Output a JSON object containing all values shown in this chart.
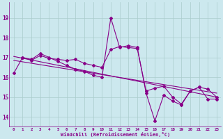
{
  "xlabel": "Windchill (Refroidissement éolien,°C)",
  "bg_color": "#cce8ee",
  "line_color": "#880088",
  "grid_color": "#aacccc",
  "xlim": [
    -0.5,
    23.5
  ],
  "ylim": [
    13.5,
    19.8
  ],
  "yticks": [
    14,
    15,
    16,
    17,
    18,
    19
  ],
  "xticks": [
    0,
    1,
    2,
    3,
    4,
    5,
    6,
    7,
    8,
    9,
    10,
    11,
    12,
    13,
    14,
    15,
    16,
    17,
    18,
    19,
    20,
    21,
    22,
    23
  ],
  "series1_x": [
    0,
    1,
    2,
    3,
    4,
    5,
    6,
    7,
    8,
    9,
    10,
    11,
    12,
    13,
    14,
    15,
    16,
    17,
    18,
    19,
    20,
    21,
    22,
    23
  ],
  "series1_y": [
    16.2,
    17.0,
    16.9,
    17.2,
    17.0,
    16.8,
    16.6,
    16.4,
    16.3,
    16.1,
    16.0,
    19.0,
    17.5,
    17.6,
    17.5,
    15.2,
    13.8,
    15.1,
    14.8,
    14.6,
    15.3,
    15.5,
    14.9,
    14.9
  ],
  "series2_x": [
    1,
    2,
    3,
    4,
    5,
    6,
    7,
    8,
    9,
    10,
    11,
    12,
    13,
    14,
    15,
    16,
    17,
    18,
    19,
    20,
    21,
    22,
    23
  ],
  "series2_y": [
    17.0,
    16.85,
    17.1,
    16.95,
    16.9,
    16.85,
    16.9,
    16.7,
    16.6,
    16.5,
    17.4,
    17.55,
    17.5,
    17.45,
    15.3,
    15.45,
    15.55,
    15.0,
    14.65,
    15.3,
    15.5,
    15.4,
    15.0
  ],
  "trend1_x": [
    0,
    23
  ],
  "trend1_y": [
    17.05,
    15.0
  ],
  "trend2_x": [
    0,
    23
  ],
  "trend2_y": [
    16.85,
    15.2
  ]
}
